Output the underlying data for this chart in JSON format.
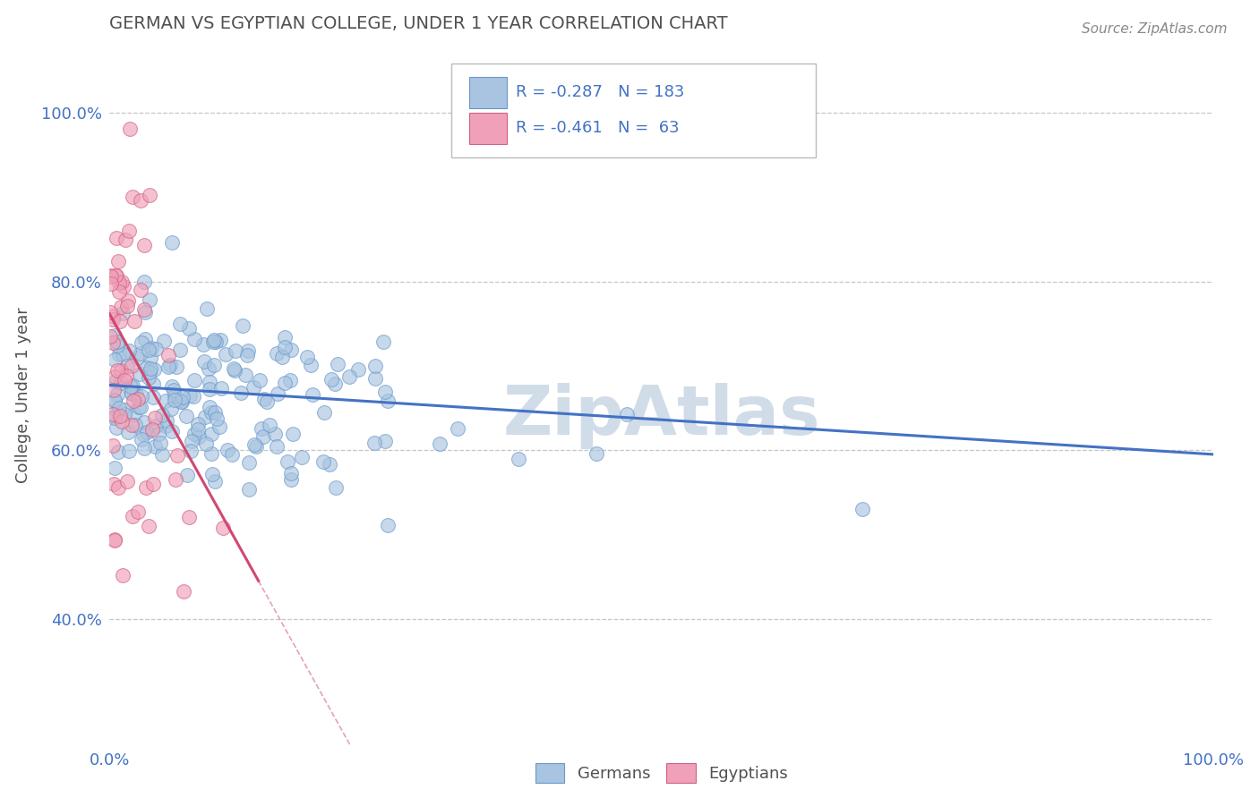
{
  "title": "GERMAN VS EGYPTIAN COLLEGE, UNDER 1 YEAR CORRELATION CHART",
  "source": "Source: ZipAtlas.com",
  "ylabel": "College, Under 1 year",
  "ytick_values": [
    0.4,
    0.6,
    0.8,
    1.0
  ],
  "ytick_labels": [
    "40.0%",
    "60.0%",
    "80.0%",
    "100.0%"
  ],
  "xtick_values": [
    0.0,
    1.0
  ],
  "xtick_labels": [
    "0.0%",
    "100.0%"
  ],
  "legend_german_r": "-0.287",
  "legend_german_n": "183",
  "legend_egyptian_r": "-0.461",
  "legend_egyptian_n": " 63",
  "german_color": "#a8c4e0",
  "german_edge_color": "#6899cc",
  "egyptian_color": "#f0a0b8",
  "egyptian_edge_color": "#d06080",
  "german_line_color": "#4472c4",
  "egyptian_line_color": "#d04870",
  "egyptian_line_dash_color": "#e8a0b8",
  "background_color": "#ffffff",
  "grid_color": "#c0c0c0",
  "title_color": "#505050",
  "axis_label_color": "#4472c4",
  "tick_color": "#4472c4",
  "watermark_color": "#d0dce8",
  "watermark": "ZipAtlas",
  "figsize": [
    14.06,
    8.92
  ],
  "dpi": 100,
  "xlim": [
    0.0,
    1.0
  ],
  "ylim": [
    0.25,
    1.08
  ]
}
